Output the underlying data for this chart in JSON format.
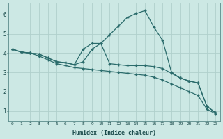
{
  "xlabel": "Humidex (Indice chaleur)",
  "ylabel": "",
  "bg_color": "#cce8e4",
  "grid_color": "#b0d0cc",
  "line_color": "#2a6b6b",
  "xlim": [
    -0.5,
    23.5
  ],
  "ylim": [
    0.5,
    6.6
  ],
  "xticks": [
    0,
    1,
    2,
    3,
    4,
    5,
    6,
    7,
    8,
    9,
    10,
    11,
    12,
    13,
    14,
    15,
    16,
    17,
    18,
    19,
    20,
    21,
    22,
    23
  ],
  "yticks": [
    1,
    2,
    3,
    4,
    5,
    6
  ],
  "line1_x": [
    0,
    1,
    2,
    3,
    4,
    5,
    6,
    7,
    8,
    9,
    10,
    11,
    12,
    13,
    14,
    15,
    16,
    17,
    18,
    19,
    20,
    21,
    22,
    23
  ],
  "line1_y": [
    4.2,
    4.05,
    4.0,
    3.95,
    3.75,
    3.55,
    3.5,
    3.4,
    4.2,
    4.5,
    4.5,
    3.45,
    3.4,
    3.35,
    3.35,
    3.35,
    3.3,
    3.2,
    2.95,
    2.7,
    2.55,
    2.45,
    1.25,
    0.9
  ],
  "line2_x": [
    0,
    1,
    2,
    3,
    4,
    5,
    6,
    7,
    8,
    9,
    10,
    11,
    12,
    13,
    14,
    15,
    16,
    17,
    18,
    19,
    20,
    21,
    22,
    23
  ],
  "line2_y": [
    4.2,
    4.05,
    4.0,
    3.95,
    3.75,
    3.55,
    3.5,
    3.4,
    3.55,
    4.2,
    4.5,
    4.95,
    5.4,
    5.85,
    6.05,
    6.2,
    5.35,
    4.65,
    3.0,
    2.7,
    2.55,
    2.45,
    1.25,
    0.9
  ],
  "line3_x": [
    0,
    1,
    2,
    3,
    4,
    5,
    6,
    7,
    8,
    9,
    10,
    11,
    12,
    13,
    14,
    15,
    16,
    17,
    18,
    19,
    20,
    21,
    22,
    23
  ],
  "line3_y": [
    4.2,
    4.05,
    4.0,
    3.85,
    3.65,
    3.45,
    3.35,
    3.25,
    3.2,
    3.15,
    3.1,
    3.05,
    3.0,
    2.95,
    2.9,
    2.85,
    2.75,
    2.6,
    2.4,
    2.2,
    2.0,
    1.8,
    1.1,
    0.85
  ]
}
